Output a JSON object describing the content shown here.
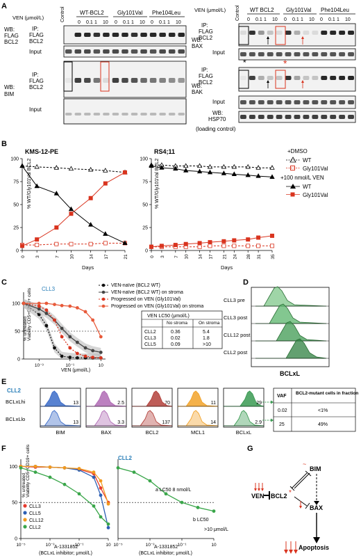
{
  "panel_letters": {
    "A": "A",
    "B": "B",
    "C": "C",
    "D": "D",
    "E": "E",
    "F": "F",
    "G": "G"
  },
  "panelA": {
    "ven_label": "VEN (μmol/L)",
    "control": "Control",
    "doses": [
      "0",
      "0.1",
      "1",
      "10"
    ],
    "groups_left": [
      "WT-BCL2",
      "Gly101Val",
      "Phe104Leu"
    ],
    "groups_right": [
      "WT BCL2",
      "Gly101Val",
      "Phe104Leu"
    ],
    "left_wb1": [
      "WB:",
      "FLAG",
      "BCL2"
    ],
    "ip_flag_bcl2": [
      "IP:",
      "FLAG",
      "BCL2"
    ],
    "input": "Input",
    "left_wb2": [
      "WB:",
      "BIM"
    ],
    "right_wb1": [
      "WB:",
      "BAX"
    ],
    "right_wb2": [
      "WB:",
      "BAK"
    ],
    "hsp70": [
      "WB:",
      "HSP70"
    ],
    "loading": "(loading control)",
    "asterisk": "*"
  },
  "panelB": {
    "ylabel": "% WT/Gly101Val BCL2",
    "xlabel": "Days",
    "legend_dmso": "+DMSO",
    "legend_ven": "+100 nmol/L VEN",
    "series_names": [
      "WT",
      "Gly101Val"
    ],
    "colors": {
      "wt": "#1a1a1a",
      "g101": "#d9341f"
    }
  },
  "panelC": {
    "cll3": "CLL3",
    "ylabel1": "Viability CD5+CD19+ cells",
    "ylabel2": "% untreated",
    "xlabel": "VEN (μmol/L)",
    "legend": [
      "VEN-naïve (BCL2 WT)",
      "VEN-naïve (BCL2 WT) on stroma",
      "Progressed on VEN (Gly101Val)",
      "Progressed on VEN (Gly101Val) on stroma"
    ],
    "table_title": "VEN LC50 (μmol/L)",
    "table_headers": [
      "",
      "No stroma",
      "On stroma"
    ],
    "table_rows": [
      [
        "CLL2",
        "0.36",
        "5.4"
      ],
      [
        "CLL3",
        "0.02",
        "1.8"
      ],
      [
        "CLL5",
        "0.09",
        ">10"
      ]
    ]
  },
  "panelD": {
    "labels": [
      "CLL3 pre",
      "CLL3 post",
      "CLL12 post",
      "CLL2 post"
    ],
    "xlabel": "BCLxL"
  },
  "panelE": {
    "cll2": "CLL2",
    "row_hi": "BCLxLhi",
    "row_lo": "BCLxLlo",
    "markers": [
      "BIM",
      "BAX",
      "BCL2",
      "MCL1",
      "BCLxL"
    ],
    "hi_values": [
      "13",
      "2.5",
      "70",
      "11",
      "29"
    ],
    "lo_values": [
      "13",
      "3.3",
      "137",
      "14",
      "2.9"
    ],
    "table_headers": [
      "VAF",
      "BCL2-mutant cells in fraction"
    ],
    "table_rows": [
      [
        "0.02",
        "<1%"
      ],
      [
        "25",
        "49%"
      ]
    ]
  },
  "panelF": {
    "ylabel1": "Viability CD5+CD19+ cells",
    "ylabel2": "% untreated",
    "xlabel1": "A-1331852",
    "xlabel2": "(BCLxL inhibitor; μmol/L)",
    "legend": [
      "CLL3",
      "CLL5",
      "CLL12",
      "CLL2"
    ],
    "colors": [
      "#e63b2e",
      "#2c5fb4",
      "#f29a1d",
      "#3aa64a"
    ],
    "cll2": "CLL2",
    "lc50a": "a LC50 8 nmol/L",
    "lc50b": "b LC50",
    "lc50b2": ">10 μmol/L"
  },
  "panelG": {
    "bim": "BIM",
    "ven": "VEN",
    "bcl2": "BCL2",
    "bax": "BAX",
    "apoptosis": "Apoptosis"
  },
  "chart_data": [
    {
      "type": "line",
      "title": "KMS-12-PE",
      "xlabel": "Days",
      "ylabel": "% WT/Gly101Val BCL2",
      "ylim": [
        0,
        100
      ],
      "x": [
        0,
        3,
        7,
        10,
        14,
        17,
        21
      ],
      "series": [
        {
          "name": "+DMSO WT",
          "values": [
            92,
            91,
            90,
            89,
            88,
            87,
            85
          ]
        },
        {
          "name": "+DMSO Gly101Val",
          "values": [
            6,
            6,
            7,
            7,
            7,
            8,
            8
          ]
        },
        {
          "name": "+100 nmol/L VEN WT",
          "values": [
            92,
            70,
            62,
            45,
            28,
            18,
            8
          ]
        },
        {
          "name": "+100 nmol/L VEN Gly101Val",
          "values": [
            5,
            12,
            25,
            40,
            57,
            73,
            85
          ]
        }
      ]
    },
    {
      "type": "line",
      "title": "RS4;11",
      "xlabel": "Days",
      "ylabel": "% WT/Gly101Val BCL2",
      "ylim": [
        0,
        100
      ],
      "x": [
        0,
        3,
        7,
        10,
        14,
        17,
        21,
        24,
        28,
        31,
        35
      ],
      "series": [
        {
          "name": "+DMSO WT",
          "values": [
            93,
            93,
            92,
            92,
            92,
            91,
            91,
            91,
            91,
            90,
            90
          ]
        },
        {
          "name": "+DMSO Gly101Val",
          "values": [
            4,
            4,
            4,
            4,
            4,
            5,
            5,
            5,
            5,
            5,
            5
          ]
        },
        {
          "name": "+100 nmol/L VEN WT",
          "values": [
            92,
            90,
            89,
            87,
            86,
            85,
            84,
            83,
            82,
            81,
            80
          ]
        },
        {
          "name": "+100 nmol/L VEN Gly101Val",
          "values": [
            4,
            5,
            6,
            7,
            8,
            9,
            10,
            11,
            12,
            14,
            16
          ]
        }
      ]
    },
    {
      "type": "line",
      "title": "CLL3",
      "xlabel": "VEN (μmol/L)",
      "ylabel": "Viability CD5+CD19+ cells % untreated",
      "ylim": [
        0,
        120
      ],
      "x": [
        0.0001,
        0.001,
        0.003,
        0.01,
        0.03,
        0.1,
        0.3,
        1,
        3,
        10
      ],
      "series": [
        {
          "name": "VEN-naïve (BCL2 WT)",
          "values": [
            100,
            80,
            60,
            20,
            5,
            3,
            2,
            2,
            2,
            2
          ]
        },
        {
          "name": "VEN-naïve (BCL2 WT) on stroma",
          "values": [
            100,
            90,
            82,
            70,
            55,
            40,
            30,
            20,
            15,
            12
          ]
        },
        {
          "name": "Progressed on VEN (Gly101Val)",
          "values": [
            100,
            95,
            88,
            70,
            40,
            20,
            10,
            5,
            3,
            2
          ]
        },
        {
          "name": "Progressed on VEN (Gly101Val) on stroma",
          "values": [
            100,
            100,
            100,
            98,
            96,
            95,
            92,
            85,
            70,
            40
          ]
        }
      ]
    },
    {
      "type": "line",
      "title": "",
      "xlabel": "A-1331852 (BCLxL inhibitor; μmol/L)",
      "ylabel": "Viability CD5+CD19+ cells % untreated",
      "ylim": [
        0,
        110
      ],
      "x": [
        1e-05,
        0.0001,
        0.001,
        0.01,
        0.1,
        1,
        3,
        10
      ],
      "series": [
        {
          "name": "CLL3",
          "values": [
            100,
            99,
            99,
            98,
            96,
            90,
            70,
            50
          ]
        },
        {
          "name": "CLL5",
          "values": [
            100,
            100,
            99,
            98,
            95,
            85,
            60,
            15
          ]
        },
        {
          "name": "CLL12",
          "values": [
            100,
            100,
            99,
            98,
            97,
            92,
            80,
            48
          ]
        },
        {
          "name": "CLL2",
          "values": [
            98,
            92,
            85,
            75,
            62,
            45,
            30,
            20
          ]
        }
      ]
    },
    {
      "type": "line",
      "title": "CLL2",
      "xlabel": "A-1331852 (BCLxL inhibitor; μmol/L)",
      "ylabel": "",
      "ylim": [
        0,
        110
      ],
      "x": [
        1e-05,
        0.0001,
        0.001,
        0.01,
        0.1,
        1,
        10
      ],
      "series": [
        {
          "name": "CLL2",
          "values": [
            98,
            92,
            80,
            62,
            50,
            43,
            38
          ]
        }
      ]
    }
  ]
}
